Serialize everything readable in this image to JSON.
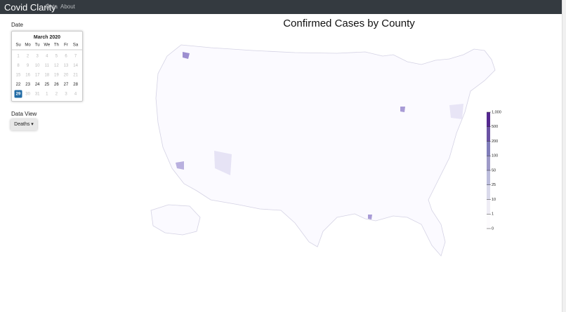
{
  "navbar": {
    "brand": "Covid Clarity",
    "links": [
      "Data",
      "About"
    ]
  },
  "sidebar": {
    "date_label": "Date",
    "calendar": {
      "title": "March 2020",
      "weekdays": [
        "Su",
        "Mo",
        "Tu",
        "We",
        "Th",
        "Fr",
        "Sa"
      ],
      "weeks": [
        [
          "1",
          "2",
          "3",
          "4",
          "5",
          "6",
          "7"
        ],
        [
          "8",
          "9",
          "10",
          "11",
          "12",
          "13",
          "14"
        ],
        [
          "15",
          "16",
          "17",
          "18",
          "19",
          "20",
          "21"
        ],
        [
          "22",
          "23",
          "24",
          "25",
          "26",
          "27",
          "28"
        ],
        [
          "29",
          "30",
          "31",
          "1",
          "2",
          "3",
          "4"
        ]
      ]
    },
    "data_view_label": "Data View",
    "dropdown": "Deaths"
  },
  "map": {
    "title": "Confirmed Cases by County",
    "legend": {
      "ticks": [
        "1,000",
        "500",
        "200",
        "100",
        "50",
        "25",
        "10",
        "1",
        "0"
      ]
    }
  }
}
